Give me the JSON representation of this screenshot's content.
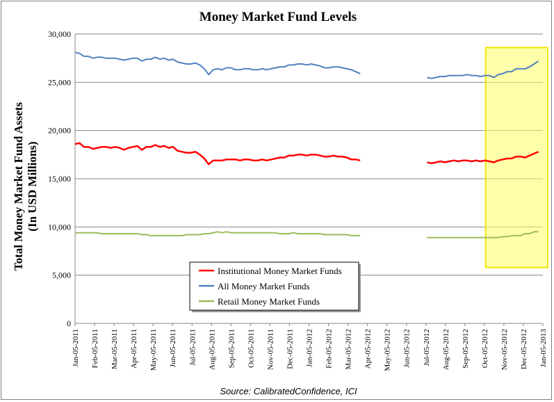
{
  "chart_data": {
    "type": "line",
    "title": "Money Market Fund Levels",
    "ylabel_line1": "Total Money Market Fund Assets",
    "ylabel_line2": "(In USD Millions)",
    "source": "Source: CalibratedConfidence, ICI",
    "ylim": [
      0,
      30000
    ],
    "yticks": [
      "0",
      "5,000",
      "10,000",
      "15,000",
      "20,000",
      "25,000",
      "30,000"
    ],
    "ytick_values": [
      0,
      5000,
      10000,
      15000,
      20000,
      25000,
      30000
    ],
    "grid": true,
    "legend_position": "bottom-center",
    "x_labels": [
      "Jan-05-2011",
      "Feb-05-2011",
      "Mar-05-2011",
      "Apr-05-2011",
      "May-05-2011",
      "Jun-05-2011",
      "Jul-05-2011",
      "Aug-05-2011",
      "Sep-05-2011",
      "Oct-05-2011",
      "Nov-05-2011",
      "Dec-05-2011",
      "Jan-05-2012",
      "Feb-05-2012",
      "Mar-05-2012",
      "Apr-05-2012",
      "May-05-2012",
      "Jun-05-2012",
      "Jul-05-2012",
      "Aug-05-2012",
      "Sep-05-2012",
      "Oct-05-2012",
      "Nov-05-2012",
      "Dec-05-2012",
      "Jan-05-2013"
    ],
    "weeks_total": 105,
    "highlight": {
      "from_week": 92,
      "to_week": 105,
      "ymin": 5800,
      "ymax": 28600,
      "color": "#ffff66"
    },
    "series": [
      {
        "name": "Institutional Money Market Funds",
        "color": "#ff0000",
        "segments": [
          {
            "start_week": 0,
            "values": [
              18600,
              18700,
              18300,
              18300,
              18100,
              18200,
              18300,
              18300,
              18200,
              18300,
              18200,
              18000,
              18200,
              18300,
              18400,
              18000,
              18300,
              18300,
              18500,
              18300,
              18400,
              18200,
              18300,
              17900,
              17800,
              17700,
              17700,
              17800,
              17500,
              17100,
              16500,
              16900,
              16900,
              16900,
              17000,
              17000,
              17000,
              16900,
              17000,
              17000,
              16900,
              16900,
              17000,
              16900,
              17000,
              17100,
              17200,
              17200,
              17400,
              17400,
              17500,
              17500,
              17400,
              17500,
              17500,
              17400,
              17300,
              17300,
              17400,
              17300,
              17300,
              17200,
              17000,
              17000,
              16900
            ]
          },
          {
            "start_week": 79,
            "values": [
              16700,
              16600,
              16700,
              16800,
              16700,
              16800,
              16900,
              16800,
              16900,
              16900,
              16800,
              16900,
              16800,
              16900,
              16800,
              16700,
              16900,
              17000,
              17100,
              17100,
              17300,
              17300,
              17200,
              17400,
              17600,
              17800
            ]
          }
        ]
      },
      {
        "name": "All Money Market Funds",
        "color": "#4f81bd",
        "segments": [
          {
            "start_week": 0,
            "values": [
              28100,
              28000,
              27700,
              27700,
              27500,
              27600,
              27600,
              27500,
              27500,
              27500,
              27400,
              27300,
              27400,
              27500,
              27500,
              27200,
              27400,
              27400,
              27600,
              27400,
              27500,
              27300,
              27400,
              27100,
              27000,
              26900,
              26900,
              27000,
              26800,
              26400,
              25800,
              26300,
              26400,
              26300,
              26500,
              26500,
              26300,
              26300,
              26400,
              26400,
              26300,
              26300,
              26400,
              26300,
              26400,
              26500,
              26600,
              26600,
              26800,
              26800,
              26900,
              26900,
              26800,
              26900,
              26800,
              26700,
              26500,
              26500,
              26600,
              26600,
              26500,
              26400,
              26300,
              26100,
              25900
            ]
          },
          {
            "start_week": 79,
            "values": [
              25500,
              25400,
              25500,
              25600,
              25600,
              25700,
              25700,
              25700,
              25700,
              25800,
              25700,
              25700,
              25600,
              25700,
              25700,
              25500,
              25800,
              25900,
              26100,
              26100,
              26400,
              26400,
              26400,
              26600,
              26900,
              27200
            ]
          }
        ]
      },
      {
        "name": "Retail Money Market Funds",
        "color": "#9bbb59",
        "segments": [
          {
            "start_week": 0,
            "values": [
              9400,
              9400,
              9400,
              9400,
              9400,
              9400,
              9300,
              9300,
              9300,
              9300,
              9300,
              9300,
              9300,
              9300,
              9300,
              9200,
              9200,
              9100,
              9100,
              9100,
              9100,
              9100,
              9100,
              9100,
              9100,
              9200,
              9200,
              9200,
              9200,
              9300,
              9300,
              9400,
              9500,
              9400,
              9500,
              9400,
              9400,
              9400,
              9400,
              9400,
              9400,
              9400,
              9400,
              9400,
              9400,
              9400,
              9300,
              9300,
              9300,
              9400,
              9300,
              9300,
              9300,
              9300,
              9300,
              9300,
              9200,
              9200,
              9200,
              9200,
              9200,
              9200,
              9100,
              9100,
              9100
            ]
          },
          {
            "start_week": 79,
            "values": [
              8900,
              8900,
              8900,
              8900,
              8900,
              8900,
              8900,
              8900,
              8900,
              8900,
              8900,
              8900,
              8900,
              8900,
              8900,
              8900,
              8900,
              9000,
              9000,
              9100,
              9100,
              9100,
              9300,
              9300,
              9500,
              9500
            ]
          }
        ]
      }
    ],
    "legend_order": [
      0,
      1,
      2
    ]
  }
}
